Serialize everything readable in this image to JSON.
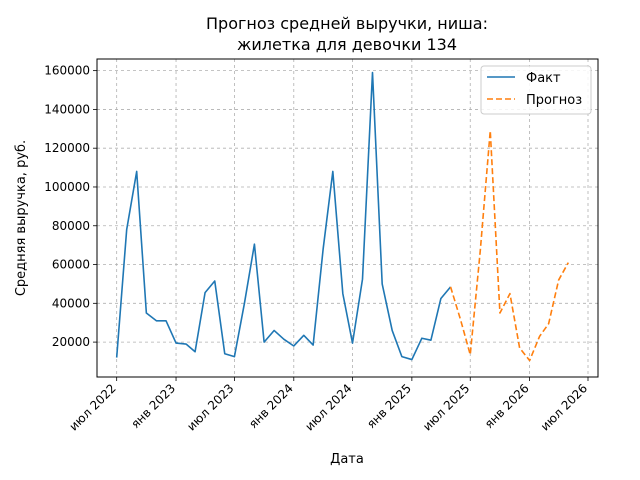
{
  "chart_data": {
    "type": "line",
    "title_line1": "Прогноз средней выручки, ниша:",
    "title_line2": "жилетка для девочки 134",
    "xlabel": "Дата",
    "ylabel": "Средняя выручка, руб.",
    "grid": true,
    "legend_position": "top-right",
    "xlim": [
      "2022-05-01",
      "2026-08-01"
    ],
    "ylim": [
      2000,
      166000
    ],
    "yticks": [
      20000,
      40000,
      60000,
      80000,
      100000,
      120000,
      140000,
      160000
    ],
    "xticks": [
      {
        "date": "2022-07-01",
        "label": "июл 2022"
      },
      {
        "date": "2023-01-01",
        "label": "янв 2023"
      },
      {
        "date": "2023-07-01",
        "label": "июл 2023"
      },
      {
        "date": "2024-01-01",
        "label": "янв 2024"
      },
      {
        "date": "2024-07-01",
        "label": "июл 2024"
      },
      {
        "date": "2025-01-01",
        "label": "янв 2025"
      },
      {
        "date": "2025-07-01",
        "label": "июл 2025"
      },
      {
        "date": "2026-01-01",
        "label": "янв 2026"
      },
      {
        "date": "2026-07-01",
        "label": "июл 2026"
      }
    ],
    "series": [
      {
        "name": "Факт",
        "color": "#1f77b4",
        "style": "solid",
        "points": [
          [
            "2022-07-01",
            12000
          ],
          [
            "2022-08-01",
            78000
          ],
          [
            "2022-09-01",
            108000
          ],
          [
            "2022-10-01",
            35000
          ],
          [
            "2022-11-01",
            31000
          ],
          [
            "2022-12-01",
            31000
          ],
          [
            "2023-01-01",
            19500
          ],
          [
            "2023-02-01",
            19000
          ],
          [
            "2023-03-01",
            15000
          ],
          [
            "2023-04-01",
            45500
          ],
          [
            "2023-05-01",
            51500
          ],
          [
            "2023-06-01",
            14000
          ],
          [
            "2023-07-01",
            12500
          ],
          [
            "2023-08-01",
            40000
          ],
          [
            "2023-09-01",
            70500
          ],
          [
            "2023-10-01",
            20000
          ],
          [
            "2023-11-01",
            26000
          ],
          [
            "2023-12-01",
            21500
          ],
          [
            "2024-01-01",
            18000
          ],
          [
            "2024-02-01",
            23500
          ],
          [
            "2024-03-01",
            18500
          ],
          [
            "2024-04-01",
            68000
          ],
          [
            "2024-05-01",
            108000
          ],
          [
            "2024-06-01",
            45000
          ],
          [
            "2024-07-01",
            19500
          ],
          [
            "2024-08-01",
            52500
          ],
          [
            "2024-09-01",
            159000
          ],
          [
            "2024-10-01",
            50000
          ],
          [
            "2024-11-01",
            26000
          ],
          [
            "2024-12-01",
            12500
          ],
          [
            "2025-01-01",
            11000
          ],
          [
            "2025-02-01",
            22000
          ],
          [
            "2025-03-01",
            21000
          ],
          [
            "2025-04-01",
            42500
          ],
          [
            "2025-05-01",
            48500
          ]
        ]
      },
      {
        "name": "Прогноз",
        "color": "#ff7f0e",
        "style": "dashed",
        "points": [
          [
            "2025-05-01",
            48500
          ],
          [
            "2025-06-01",
            31500
          ],
          [
            "2025-07-01",
            13500
          ],
          [
            "2025-08-01",
            67000
          ],
          [
            "2025-09-01",
            129000
          ],
          [
            "2025-10-01",
            35000
          ],
          [
            "2025-11-01",
            45000
          ],
          [
            "2025-12-01",
            17000
          ],
          [
            "2026-01-01",
            10500
          ],
          [
            "2026-02-01",
            23000
          ],
          [
            "2026-03-01",
            29500
          ],
          [
            "2026-04-01",
            52000
          ],
          [
            "2026-05-01",
            61000
          ]
        ]
      }
    ]
  }
}
